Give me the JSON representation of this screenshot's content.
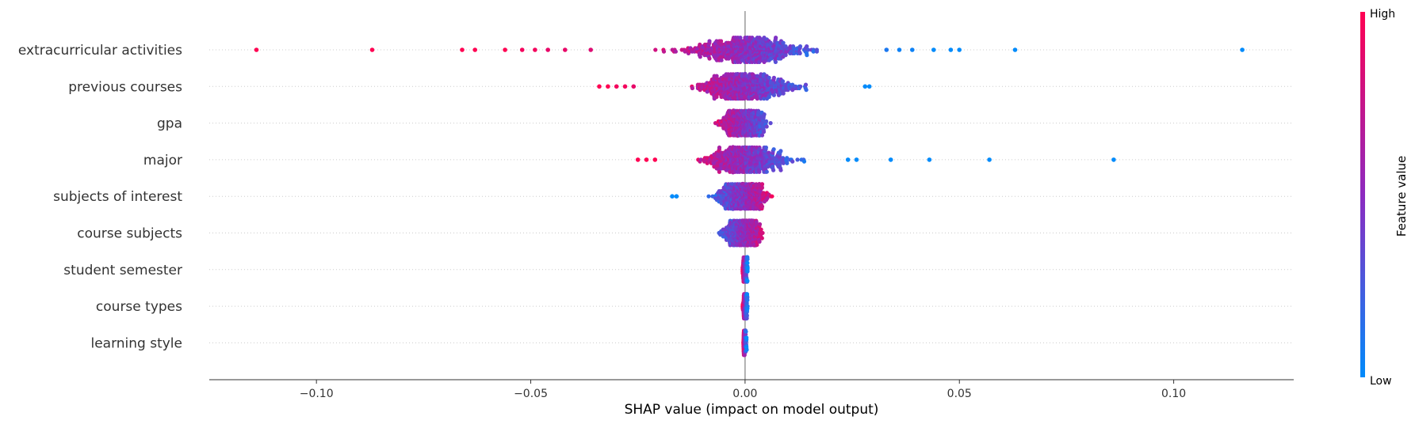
{
  "chart_data": {
    "type": "scatter",
    "subtype": "shap-beeswarm-summary",
    "xlabel": "SHAP value (impact on model output)",
    "xlim": [
      -0.125,
      0.128
    ],
    "xticks": [
      -0.1,
      -0.05,
      0.0,
      0.05,
      0.1
    ],
    "xtick_labels": [
      "−0.10",
      "−0.05",
      "0.00",
      "0.05",
      "0.10"
    ],
    "grid": false,
    "zero_line": true,
    "colorbar": {
      "title": "Feature value",
      "high_label": "High",
      "low_label": "Low",
      "high_color": "#ff0052",
      "low_color": "#008bfb"
    },
    "features": [
      {
        "name": "extracurricular activities",
        "lo": -0.033,
        "hi": 0.031,
        "outliers": [
          [
            -0.114,
            1
          ],
          [
            -0.087,
            1
          ],
          [
            -0.066,
            1
          ],
          [
            -0.063,
            1
          ],
          [
            -0.056,
            1
          ],
          [
            -0.052,
            0.95
          ],
          [
            -0.049,
            0.95
          ],
          [
            -0.046,
            0.9
          ],
          [
            -0.042,
            0.9
          ],
          [
            -0.036,
            0.85
          ],
          [
            0.033,
            0.1
          ],
          [
            0.036,
            0.05
          ],
          [
            0.039,
            0.05
          ],
          [
            0.044,
            0
          ],
          [
            0.048,
            0
          ],
          [
            0.05,
            0
          ],
          [
            0.063,
            0
          ],
          [
            0.116,
            0
          ]
        ]
      },
      {
        "name": "previous courses",
        "lo": -0.024,
        "hi": 0.026,
        "outliers": [
          [
            -0.034,
            1
          ],
          [
            -0.032,
            1
          ],
          [
            -0.03,
            0.95
          ],
          [
            -0.028,
            0.95
          ],
          [
            -0.026,
            0.9
          ],
          [
            0.028,
            0
          ],
          [
            0.029,
            0
          ]
        ]
      },
      {
        "name": "gpa",
        "lo": -0.011,
        "hi": 0.01,
        "outliers": []
      },
      {
        "name": "major",
        "lo": -0.019,
        "hi": 0.022,
        "outliers": [
          [
            -0.025,
            1
          ],
          [
            -0.023,
            1
          ],
          [
            -0.021,
            1
          ],
          [
            0.024,
            0
          ],
          [
            0.026,
            0
          ],
          [
            0.034,
            0
          ],
          [
            0.043,
            0
          ],
          [
            0.057,
            0
          ],
          [
            0.086,
            0
          ]
        ]
      },
      {
        "name": "subjects of interest",
        "lo": -0.014,
        "hi": 0.01,
        "outliers": [
          [
            -0.017,
            0
          ],
          [
            -0.016,
            0
          ]
        ]
      },
      {
        "name": "course subjects",
        "lo": -0.011,
        "hi": 0.008,
        "outliers": []
      },
      {
        "name": "student semester",
        "lo": -0.0006,
        "hi": 0.0006,
        "outliers": []
      },
      {
        "name": "course types",
        "lo": -0.0006,
        "hi": 0.0006,
        "outliers": []
      },
      {
        "name": "learning style",
        "lo": -0.0004,
        "hi": 0.0004,
        "outliers": []
      }
    ]
  }
}
